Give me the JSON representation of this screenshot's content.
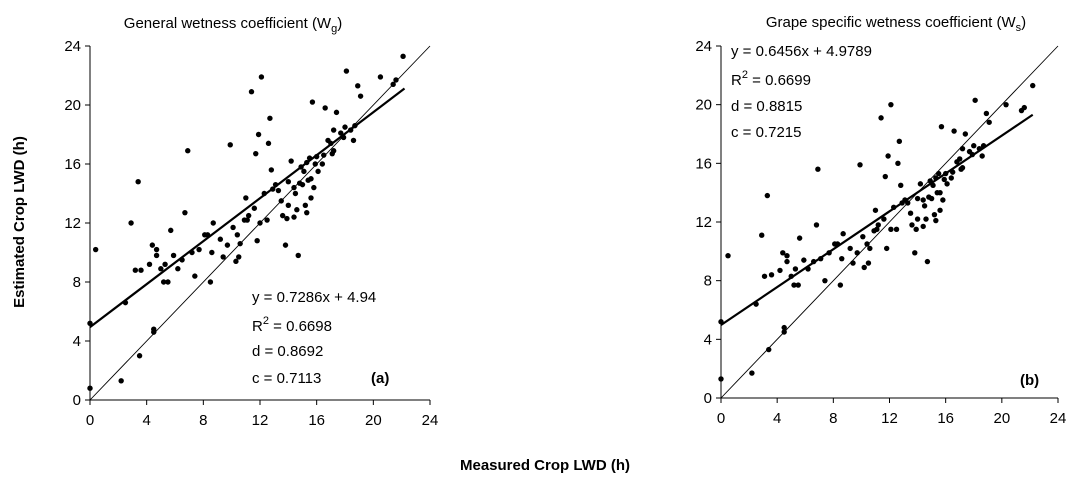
{
  "figure": {
    "shared_ylabel": "Estimated Crop LWD (h)",
    "shared_xlabel": "Measured Crop LWD (h)"
  },
  "panels": [
    {
      "title_main": "General wetness coefficient (W",
      "title_sub": "g",
      "title_close": ")",
      "panel_label": "(a)",
      "stats": {
        "equation": "y = 0.7286x + 4.94",
        "r2_prefix": "R",
        "r2_sup": "2",
        "r2_value": " = 0.6698",
        "d": "d = 0.8692",
        "c": "c = 0.7113"
      }
    },
    {
      "title_main": "Grape specific wetness coefficient (W",
      "title_sub": "s",
      "title_close": ")",
      "panel_label": "(b)",
      "stats": {
        "equation": "y = 0.6456x + 4.9789",
        "r2_prefix": "R",
        "r2_sup": "2",
        "r2_value": " = 0.6699",
        "d": "d = 0.8815",
        "c": "c = 0.7215"
      }
    }
  ],
  "chart_data": [
    {
      "type": "scatter",
      "title": "General wetness coefficient (W g)",
      "xlabel": "Measured Crop LWD (h)",
      "ylabel": "Estimated Crop LWD (h)",
      "xlim": [
        0,
        24
      ],
      "ylim": [
        0,
        24
      ],
      "xticks": [
        "0",
        "4",
        "8",
        "12",
        "16",
        "20",
        "24"
      ],
      "yticks": [
        "0",
        "4",
        "8",
        "12",
        "16",
        "20",
        "24"
      ],
      "grid": false,
      "regression": {
        "slope": 0.7286,
        "intercept": 4.94,
        "x_range": [
          0,
          22.2
        ]
      },
      "one_to_one": {
        "x_range": [
          0,
          24
        ]
      },
      "points": [
        [
          0,
          0.8
        ],
        [
          0,
          5.2
        ],
        [
          0.4,
          10.2
        ],
        [
          2.2,
          1.3
        ],
        [
          2.5,
          6.6
        ],
        [
          2.9,
          12
        ],
        [
          3.2,
          8.8
        ],
        [
          3.4,
          14.8
        ],
        [
          3.5,
          3
        ],
        [
          3.6,
          8.8
        ],
        [
          4.2,
          9.2
        ],
        [
          4.4,
          10.5
        ],
        [
          4.5,
          4.6
        ],
        [
          4.5,
          4.8
        ],
        [
          4.7,
          10.2
        ],
        [
          4.7,
          9.8
        ],
        [
          5,
          8.9
        ],
        [
          5.2,
          8
        ],
        [
          5.3,
          9.2
        ],
        [
          5.5,
          8
        ],
        [
          5.7,
          11.5
        ],
        [
          5.9,
          9.8
        ],
        [
          6.2,
          8.9
        ],
        [
          6.5,
          9.5
        ],
        [
          6.7,
          12.7
        ],
        [
          6.9,
          16.9
        ],
        [
          7.2,
          10
        ],
        [
          7.4,
          8.4
        ],
        [
          7.7,
          10.2
        ],
        [
          8.1,
          11.2
        ],
        [
          8.3,
          11.2
        ],
        [
          8.5,
          8
        ],
        [
          8.6,
          10
        ],
        [
          8.7,
          12
        ],
        [
          9.2,
          10.9
        ],
        [
          9.4,
          9.7
        ],
        [
          9.7,
          10.5
        ],
        [
          9.9,
          17.3
        ],
        [
          10.1,
          11.7
        ],
        [
          10.3,
          9.4
        ],
        [
          10.5,
          9.7
        ],
        [
          10.4,
          11.2
        ],
        [
          10.6,
          10.6
        ],
        [
          10.9,
          12.2
        ],
        [
          11,
          13.7
        ],
        [
          11.1,
          12.2
        ],
        [
          11.2,
          12.5
        ],
        [
          11.4,
          20.9
        ],
        [
          11.6,
          13
        ],
        [
          11.8,
          10.8
        ],
        [
          11.9,
          18
        ],
        [
          12,
          12
        ],
        [
          12.1,
          21.9
        ],
        [
          12.3,
          14
        ],
        [
          12.5,
          12.2
        ],
        [
          12.7,
          19.1
        ],
        [
          12.8,
          15.6
        ],
        [
          12.9,
          14.3
        ],
        [
          13.1,
          14.6
        ],
        [
          13.3,
          14.2
        ],
        [
          13.5,
          13.5
        ],
        [
          13.6,
          12.5
        ],
        [
          13.8,
          10.5
        ],
        [
          13.9,
          12.3
        ],
        [
          14,
          13.2
        ],
        [
          14,
          14.8
        ],
        [
          14.2,
          16.2
        ],
        [
          14.4,
          12.4
        ],
        [
          14.5,
          14
        ],
        [
          14.4,
          14.4
        ],
        [
          14.6,
          12.9
        ],
        [
          14.7,
          9.8
        ],
        [
          14.8,
          14.7
        ],
        [
          14.9,
          15.8
        ],
        [
          15,
          14.6
        ],
        [
          15.1,
          15.5
        ],
        [
          15.2,
          13.2
        ],
        [
          15.3,
          16.1
        ],
        [
          15.3,
          12.7
        ],
        [
          15.4,
          14.9
        ],
        [
          15.5,
          16.4
        ],
        [
          15.6,
          13.7
        ],
        [
          15.6,
          15
        ],
        [
          15.7,
          20.2
        ],
        [
          15.8,
          14.4
        ],
        [
          15.9,
          16
        ],
        [
          16,
          16.5
        ],
        [
          16.1,
          15.5
        ],
        [
          16.4,
          16
        ],
        [
          16.6,
          19.8
        ],
        [
          16.8,
          17.6
        ],
        [
          17,
          17.4
        ],
        [
          17.1,
          16.7
        ],
        [
          17.2,
          18.3
        ],
        [
          17.4,
          19.5
        ],
        [
          17.7,
          18.1
        ],
        [
          17.9,
          17.8
        ],
        [
          18,
          18.5
        ],
        [
          18.1,
          22.3
        ],
        [
          18.4,
          18.3
        ],
        [
          18.6,
          17.6
        ],
        [
          18.7,
          18.6
        ],
        [
          18.9,
          21.3
        ],
        [
          19.1,
          20.6
        ],
        [
          20.5,
          21.9
        ],
        [
          21.4,
          21.4
        ],
        [
          21.6,
          21.7
        ],
        [
          22.1,
          23.3
        ],
        [
          17.2,
          16.9
        ],
        [
          16.5,
          16.6
        ],
        [
          11.7,
          16.7
        ],
        [
          12.6,
          17.4
        ]
      ]
    },
    {
      "type": "scatter",
      "title": "Grape specific wetness coefficient (W s)",
      "xlabel": "Measured Crop LWD (h)",
      "ylabel": "Estimated Crop LWD (h)",
      "xlim": [
        0,
        24
      ],
      "ylim": [
        0,
        24
      ],
      "xticks": [
        "0",
        "4",
        "8",
        "12",
        "16",
        "20",
        "24"
      ],
      "yticks": [
        "0",
        "4",
        "8",
        "12",
        "16",
        "20",
        "24"
      ],
      "grid": false,
      "regression": {
        "slope": 0.6456,
        "intercept": 4.9789,
        "x_range": [
          0,
          22.2
        ]
      },
      "one_to_one": {
        "x_range": [
          0,
          24
        ]
      },
      "points": [
        [
          0,
          1.3
        ],
        [
          0,
          5.2
        ],
        [
          0.5,
          9.7
        ],
        [
          2.2,
          1.7
        ],
        [
          2.5,
          6.4
        ],
        [
          2.9,
          11.1
        ],
        [
          3.1,
          8.3
        ],
        [
          3.3,
          13.8
        ],
        [
          3.4,
          3.3
        ],
        [
          3.6,
          8.4
        ],
        [
          4.2,
          8.7
        ],
        [
          4.4,
          9.9
        ],
        [
          4.5,
          4.5
        ],
        [
          4.5,
          4.8
        ],
        [
          4.7,
          9.7
        ],
        [
          4.7,
          9.3
        ],
        [
          5,
          8.3
        ],
        [
          5.2,
          7.7
        ],
        [
          5.3,
          8.8
        ],
        [
          5.5,
          7.7
        ],
        [
          5.6,
          10.9
        ],
        [
          5.9,
          9.4
        ],
        [
          6.2,
          8.8
        ],
        [
          6.6,
          9.3
        ],
        [
          6.8,
          11.8
        ],
        [
          6.9,
          15.6
        ],
        [
          7.1,
          9.5
        ],
        [
          7.4,
          8
        ],
        [
          7.7,
          9.9
        ],
        [
          8.1,
          10.5
        ],
        [
          8.3,
          10.5
        ],
        [
          8.5,
          7.7
        ],
        [
          8.6,
          9.5
        ],
        [
          8.7,
          11.2
        ],
        [
          9.2,
          10.2
        ],
        [
          9.4,
          9.2
        ],
        [
          9.7,
          9.9
        ],
        [
          9.9,
          15.9
        ],
        [
          10.1,
          11
        ],
        [
          10.2,
          8.9
        ],
        [
          10.5,
          9.2
        ],
        [
          10.4,
          10.5
        ],
        [
          10.6,
          10.2
        ],
        [
          10.9,
          11.4
        ],
        [
          11,
          12.8
        ],
        [
          11.1,
          11.5
        ],
        [
          11.2,
          11.8
        ],
        [
          11.4,
          19.1
        ],
        [
          11.6,
          12.2
        ],
        [
          11.8,
          10.2
        ],
        [
          11.9,
          16.5
        ],
        [
          12.1,
          11.5
        ],
        [
          12.1,
          20
        ],
        [
          12.3,
          13
        ],
        [
          12.5,
          11.5
        ],
        [
          12.7,
          17.5
        ],
        [
          12.8,
          14.5
        ],
        [
          12.9,
          13.3
        ],
        [
          13.1,
          13.5
        ],
        [
          13.3,
          13.3
        ],
        [
          13.5,
          12.6
        ],
        [
          13.6,
          11.8
        ],
        [
          13.8,
          9.9
        ],
        [
          13.9,
          11.5
        ],
        [
          14,
          12.2
        ],
        [
          14,
          13.6
        ],
        [
          14.2,
          14.6
        ],
        [
          14.4,
          11.7
        ],
        [
          14.5,
          13.1
        ],
        [
          14.4,
          13.5
        ],
        [
          14.6,
          12.2
        ],
        [
          14.7,
          9.3
        ],
        [
          14.8,
          13.7
        ],
        [
          14.9,
          14.8
        ],
        [
          15,
          13.6
        ],
        [
          15.1,
          14.5
        ],
        [
          15.2,
          12.5
        ],
        [
          15.3,
          15
        ],
        [
          15.3,
          12.1
        ],
        [
          15.4,
          14
        ],
        [
          15.5,
          15.3
        ],
        [
          15.6,
          12.8
        ],
        [
          15.6,
          14
        ],
        [
          15.7,
          18.5
        ],
        [
          15.8,
          13.5
        ],
        [
          15.9,
          14.9
        ],
        [
          16,
          15.3
        ],
        [
          16.1,
          14.6
        ],
        [
          16.4,
          15
        ],
        [
          16.6,
          18.2
        ],
        [
          16.8,
          16.1
        ],
        [
          17,
          16.3
        ],
        [
          17.1,
          15.6
        ],
        [
          17.2,
          17
        ],
        [
          17.4,
          18
        ],
        [
          17.7,
          16.8
        ],
        [
          17.9,
          16.6
        ],
        [
          18,
          17.2
        ],
        [
          18.1,
          20.3
        ],
        [
          18.4,
          17
        ],
        [
          18.6,
          16.5
        ],
        [
          18.7,
          17.2
        ],
        [
          18.9,
          19.4
        ],
        [
          19.1,
          18.8
        ],
        [
          20.3,
          20
        ],
        [
          21.4,
          19.6
        ],
        [
          21.6,
          19.8
        ],
        [
          22.2,
          21.3
        ],
        [
          17.2,
          15.7
        ],
        [
          16.5,
          15.4
        ],
        [
          11.7,
          15.1
        ],
        [
          12.6,
          16
        ]
      ]
    }
  ]
}
